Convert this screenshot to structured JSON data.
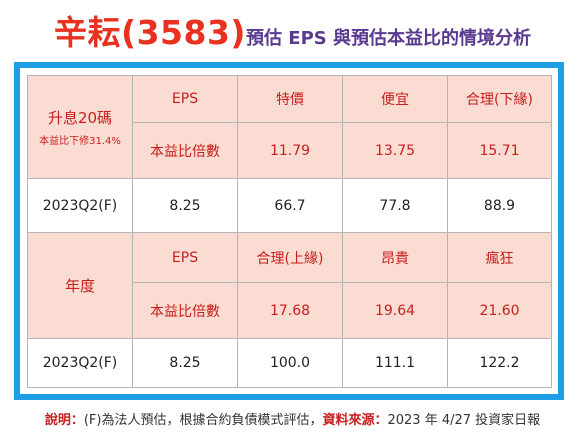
{
  "title": {
    "main": "辛耘(3583)",
    "sub": "預估 EPS 與預估本益比的情境分析"
  },
  "table": {
    "section1": {
      "title": "升息20碼",
      "note": "本益比下修31.4%",
      "headers": [
        "EPS",
        "特價",
        "便宜",
        "合理(下緣)"
      ],
      "pe_label": "本益比倍數",
      "pe_values": [
        "11.79",
        "13.75",
        "15.71"
      ],
      "data_label": "2023Q2(F)",
      "data_values": [
        "8.25",
        "66.7",
        "77.8",
        "88.9"
      ]
    },
    "section2": {
      "title": "年度",
      "headers": [
        "EPS",
        "合理(上緣)",
        "昂貴",
        "瘋狂"
      ],
      "pe_label": "本益比倍數",
      "pe_values": [
        "17.68",
        "19.64",
        "21.60"
      ],
      "data_label": "2023Q2(F)",
      "data_values": [
        "8.25",
        "100.0",
        "111.1",
        "122.2"
      ]
    }
  },
  "footer": {
    "note_label": "說明：",
    "note_text": "(F)為法人預估，根據合約負債模式評估，",
    "source_label": "資料來源：",
    "source_text": "2023 年 4/27 投資家日報"
  },
  "colors": {
    "title_red": "#e8311f",
    "title_purple": "#5a3a90",
    "frame_blue": "#1f9ee6",
    "header_pink": "#fbdcd2"
  }
}
